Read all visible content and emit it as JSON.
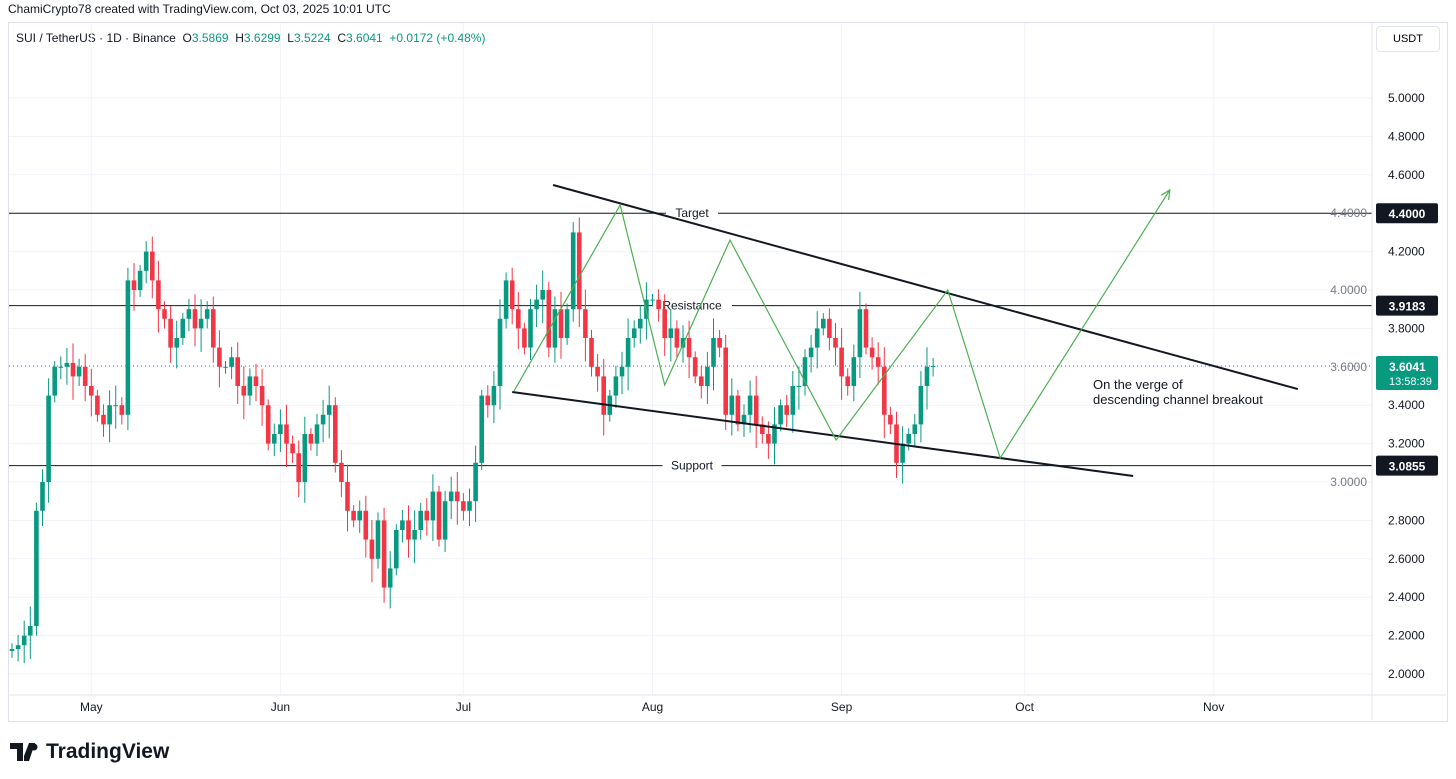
{
  "credit": "ChamiCrypto78 created with TradingView.com, Oct 03, 2025 10:01 UTC",
  "legend": {
    "symbol": "SUI / TetherUS · 1D · Binance",
    "o_label": "O",
    "o": "3.5869",
    "h_label": "H",
    "h": "3.6299",
    "l_label": "L",
    "l": "3.5224",
    "c_label": "C",
    "c": "3.6041",
    "change": "+0.0172 (+0.48%)"
  },
  "currency_button": "USDT",
  "logo": "TradingView",
  "colors": {
    "up": "#089981",
    "down": "#f23645",
    "drawing": "#4caf50",
    "line": "#131722"
  },
  "chart_data": {
    "type": "candlestick",
    "title": "SUI / TetherUS · 1D · Binance",
    "ylim": [
      1.9,
      5.1
    ],
    "yticks": [
      "2.0000",
      "2.2000",
      "2.4000",
      "2.6000",
      "2.8000",
      "3.0000",
      "3.2000",
      "3.4000",
      "3.6000",
      "3.8000",
      "4.0000",
      "4.2000",
      "4.4000",
      "4.6000",
      "4.8000",
      "5.0000"
    ],
    "xticks": [
      {
        "label": "May",
        "day": 13
      },
      {
        "label": "Jun",
        "day": 44
      },
      {
        "label": "Jul",
        "day": 74
      },
      {
        "label": "Aug",
        "day": 105
      },
      {
        "label": "Sep",
        "day": 136
      },
      {
        "label": "Oct",
        "day": 166
      },
      {
        "label": "Nov",
        "day": 197
      }
    ],
    "start_open": 2.12,
    "closes": [
      2.13,
      2.15,
      2.2,
      2.25,
      2.85,
      3.0,
      3.45,
      3.6,
      3.6,
      3.62,
      3.55,
      3.6,
      3.5,
      3.45,
      3.35,
      3.3,
      3.4,
      3.4,
      3.35,
      4.05,
      4.0,
      4.1,
      4.2,
      4.05,
      3.9,
      3.85,
      3.7,
      3.75,
      3.85,
      3.9,
      3.8,
      3.85,
      3.9,
      3.7,
      3.6,
      3.6,
      3.65,
      3.5,
      3.45,
      3.55,
      3.5,
      3.4,
      3.2,
      3.25,
      3.3,
      3.2,
      3.15,
      3.0,
      3.25,
      3.2,
      3.3,
      3.35,
      3.4,
      3.1,
      3.0,
      2.85,
      2.8,
      2.85,
      2.7,
      2.6,
      2.8,
      2.45,
      2.55,
      2.75,
      2.8,
      2.7,
      2.75,
      2.85,
      2.8,
      2.95,
      2.7,
      2.9,
      2.95,
      2.9,
      2.85,
      2.9,
      3.1,
      3.45,
      3.4,
      3.5,
      3.85,
      4.05,
      3.9,
      3.8,
      3.7,
      3.9,
      3.95,
      4.0,
      3.7,
      3.9,
      3.75,
      3.9,
      4.3,
      3.9,
      3.75,
      3.6,
      3.55,
      3.35,
      3.45,
      3.55,
      3.6,
      3.75,
      3.8,
      3.85,
      3.95,
      3.95,
      3.9,
      3.75,
      3.8,
      3.7,
      3.75,
      3.65,
      3.55,
      3.5,
      3.6,
      3.75,
      3.7,
      3.35,
      3.45,
      3.3,
      3.35,
      3.45,
      3.3,
      3.25,
      3.2,
      3.3,
      3.4,
      3.35,
      3.5,
      3.5,
      3.65,
      3.7,
      3.8,
      3.85,
      3.75,
      3.7,
      3.55,
      3.5,
      3.65,
      3.9,
      3.7,
      3.65,
      3.6,
      3.35,
      3.3,
      3.1,
      3.2,
      3.25,
      3.3,
      3.5,
      3.6,
      3.6041
    ],
    "horizontal_levels": [
      {
        "label": "Target",
        "value": 4.4,
        "price_label": "4.4000"
      },
      {
        "label": "Resistance",
        "value": 3.9183,
        "price_label": "3.9183"
      },
      {
        "label": "Support",
        "value": 3.0855,
        "price_label": "3.0855"
      }
    ],
    "channel": {
      "upper": [
        [
          88.7,
          4.547
        ],
        [
          210.8,
          3.484
        ]
      ],
      "lower": [
        [
          82,
          3.469
        ],
        [
          183.8,
          3.031
        ]
      ]
    },
    "zigzag": [
      [
        82.3,
        3.474
      ],
      [
        99.7,
        4.443
      ],
      [
        107,
        3.505
      ],
      [
        117.7,
        4.26
      ],
      [
        135.1,
        3.219
      ],
      [
        153.4,
        4.0
      ],
      [
        162,
        3.125
      ],
      [
        189.8,
        4.521
      ]
    ],
    "last_price": {
      "value": 3.6041,
      "label": "3.6041",
      "countdown": "13:58:39"
    },
    "annotation": [
      "On the verge of",
      "descending channel breakout"
    ]
  }
}
